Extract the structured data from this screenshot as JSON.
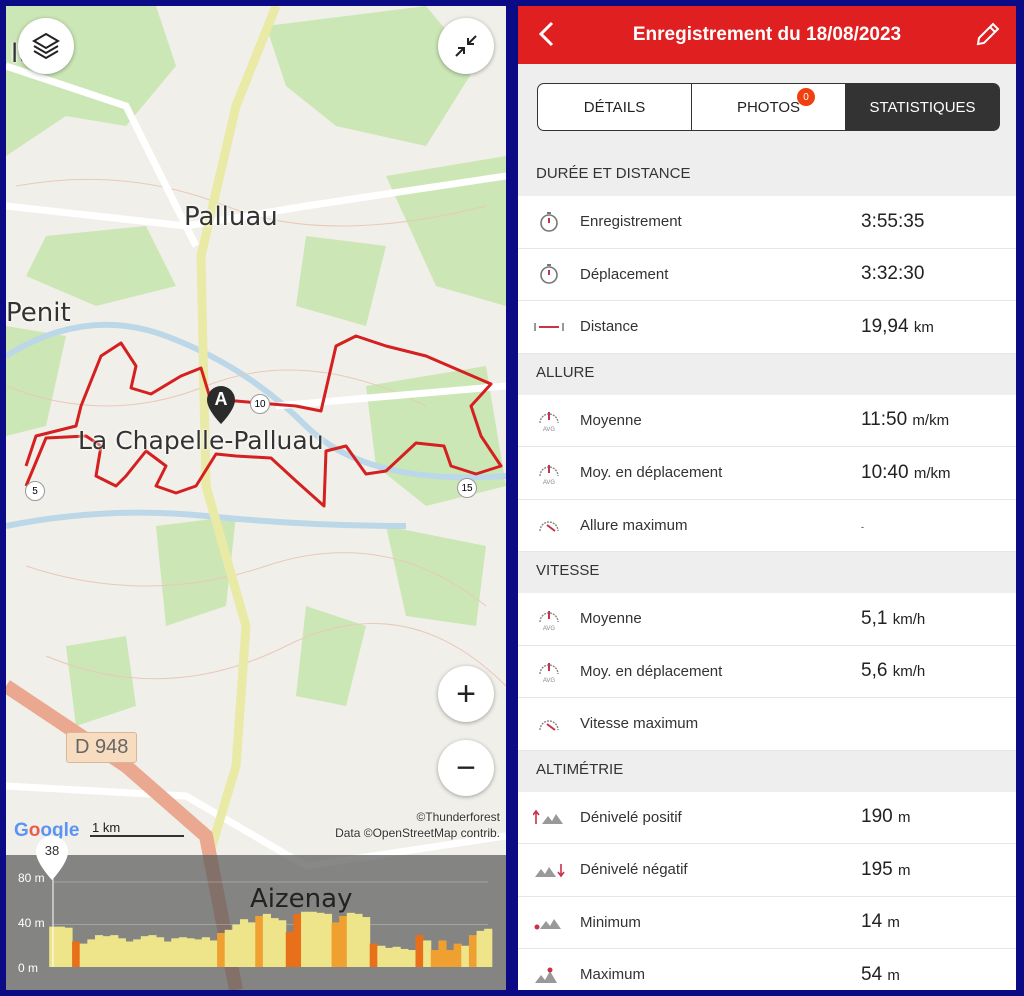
{
  "map": {
    "places": [
      "ltes",
      "Palluau",
      "Penit",
      "La Chapelle-Palluau",
      "Aizenay"
    ],
    "road_badges": [
      "10",
      "5",
      "15"
    ],
    "road_label": "D 948",
    "marker": "A",
    "scale": "1 km",
    "google": "Google",
    "attribution": [
      "©Thunderforest",
      "Data ©OpenStreetMap contrib."
    ],
    "buttons": {
      "layers": "layers-icon",
      "collapse": "collapse-icon",
      "zoom_in": "+",
      "zoom_out": "−"
    },
    "track_color": "#d42020",
    "elevation": {
      "cursor_value": "38",
      "y_ticks": [
        "80 m",
        "40 m",
        "0 m"
      ],
      "ylim": [
        0,
        80
      ],
      "profile_m": [
        38,
        38,
        37,
        24,
        22,
        26,
        30,
        29,
        30,
        27,
        24,
        26,
        29,
        30,
        28,
        24,
        27,
        28,
        27,
        26,
        28,
        25,
        32,
        35,
        40,
        45,
        42,
        48,
        50,
        46,
        44,
        33,
        50,
        52,
        52,
        51,
        50,
        42,
        48,
        51,
        50,
        47,
        22,
        20,
        18,
        19,
        17,
        16,
        30,
        25,
        16,
        25,
        16,
        22,
        20,
        30,
        34,
        36
      ]
    }
  },
  "header": {
    "title": "Enregistrement du 18/08/2023",
    "back": "back-icon",
    "edit": "pencil-icon",
    "color": "#e01f20"
  },
  "tabs": [
    {
      "label": "DÉTAILS"
    },
    {
      "label": "PHOTOS",
      "badge": "0"
    },
    {
      "label": "STATISTIQUES",
      "active": true
    }
  ],
  "sections": [
    {
      "title": "DURÉE ET DISTANCE",
      "rows": [
        {
          "icon": "stopwatch",
          "label": "Enregistrement",
          "value": "3:55:35",
          "unit": ""
        },
        {
          "icon": "stopwatch",
          "label": "Déplacement",
          "value": "3:32:30",
          "unit": ""
        },
        {
          "icon": "distance",
          "label": "Distance",
          "value": "19,94",
          "unit": "km"
        }
      ]
    },
    {
      "title": "ALLURE",
      "rows": [
        {
          "icon": "gauge-avg",
          "label": "Moyenne",
          "value": "11:50",
          "unit": "m/km"
        },
        {
          "icon": "gauge-avg",
          "label": "Moy. en déplacement",
          "value": "10:40",
          "unit": "m/km"
        },
        {
          "icon": "gauge-max",
          "label": "Allure maximum",
          "value": "-",
          "unit": ""
        }
      ]
    },
    {
      "title": "VITESSE",
      "rows": [
        {
          "icon": "gauge-avg",
          "label": "Moyenne",
          "value": "5,1",
          "unit": "km/h"
        },
        {
          "icon": "gauge-avg",
          "label": "Moy. en déplacement",
          "value": "5,6",
          "unit": "km/h"
        },
        {
          "icon": "gauge-max",
          "label": "Vitesse maximum",
          "value": "",
          "unit": ""
        }
      ]
    },
    {
      "title": "ALTIMÉTRIE",
      "rows": [
        {
          "icon": "elev-up",
          "label": "Dénivelé positif",
          "value": "190",
          "unit": "m"
        },
        {
          "icon": "elev-down",
          "label": "Dénivelé négatif",
          "value": "195",
          "unit": "m"
        },
        {
          "icon": "elev-min",
          "label": "Minimum",
          "value": "14",
          "unit": "m"
        },
        {
          "icon": "elev-max",
          "label": "Maximum",
          "value": "54",
          "unit": "m"
        }
      ]
    }
  ]
}
